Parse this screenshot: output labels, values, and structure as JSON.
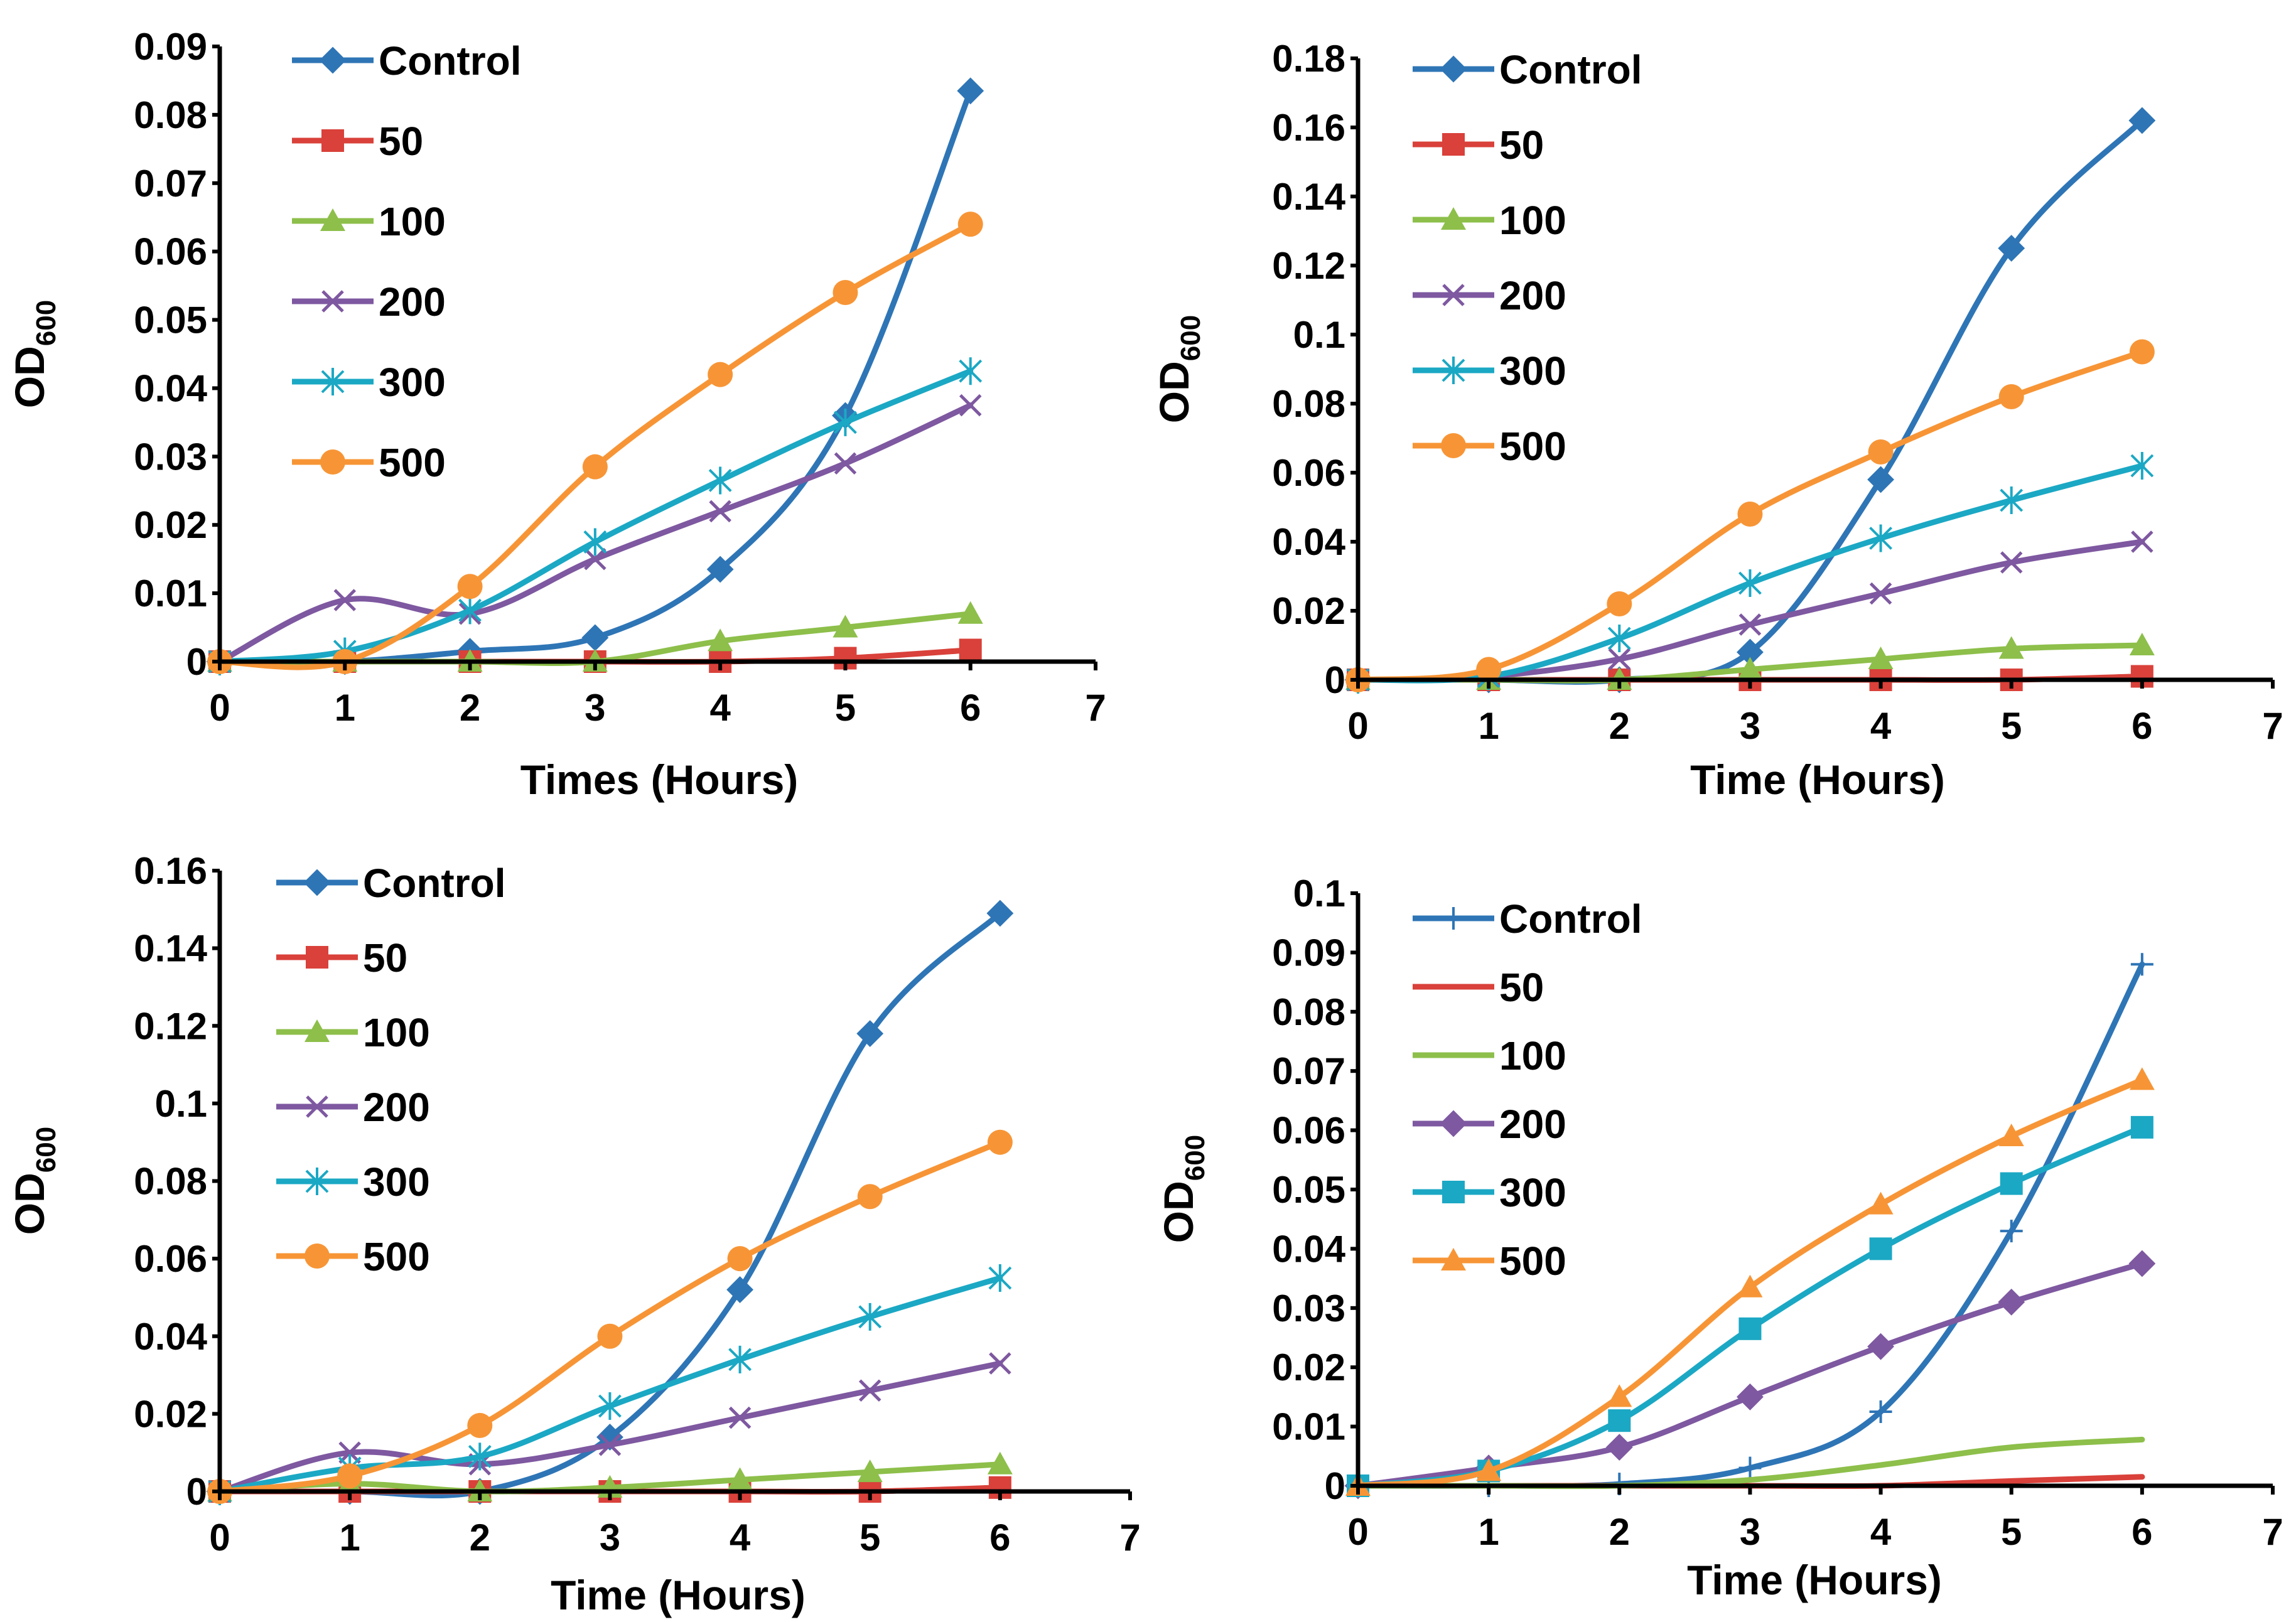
{
  "colors": {
    "control": "#2E75B6",
    "c50": "#D9413A",
    "c100": "#8DBF4A",
    "c200": "#7E58A0",
    "c300": "#1BA8C4",
    "c500": "#F79536"
  },
  "chart_data": [
    {
      "type": "line",
      "ylabel_main": "OD",
      "ylabel_sub": "600",
      "xlabel": "Times (Hours)",
      "xlim": [
        0,
        7
      ],
      "ylim": [
        0,
        0.09
      ],
      "x_ticks": [
        "0",
        "1",
        "2",
        "3",
        "4",
        "5",
        "6",
        "7"
      ],
      "y_ticks": [
        "0",
        "0.01",
        "0.02",
        "0.03",
        "0.04",
        "0.05",
        "0.06",
        "0.07",
        "0.08",
        "0.09"
      ],
      "x": [
        0,
        1,
        2,
        3,
        4,
        5,
        6
      ],
      "series": [
        {
          "name": "Control",
          "color": "control",
          "marker": "diamond",
          "values": [
            0,
            0,
            0.0015,
            0.0035,
            0.0135,
            0.036,
            0.0835
          ]
        },
        {
          "name": "50",
          "color": "c50",
          "marker": "square",
          "values": [
            0,
            0,
            0,
            0,
            0,
            0.0005,
            0.0017
          ]
        },
        {
          "name": "100",
          "color": "c100",
          "marker": "triangle",
          "values": [
            0,
            0,
            0,
            0,
            0.003,
            0.005,
            0.007
          ]
        },
        {
          "name": "200",
          "color": "c200",
          "marker": "x",
          "values": [
            0,
            0.009,
            0.007,
            0.015,
            0.022,
            0.029,
            0.0375
          ]
        },
        {
          "name": "300",
          "color": "c300",
          "marker": "star",
          "values": [
            0,
            0.0015,
            0.0075,
            0.0175,
            0.0265,
            0.035,
            0.0425
          ]
        },
        {
          "name": "500",
          "color": "c500",
          "marker": "circle",
          "values": [
            0,
            0,
            0.011,
            0.0285,
            0.042,
            0.054,
            0.064
          ]
        }
      ]
    },
    {
      "type": "line",
      "ylabel_main": "OD",
      "ylabel_sub": "600",
      "xlabel": "Time (Hours)",
      "xlim": [
        0,
        7
      ],
      "ylim": [
        0,
        0.18
      ],
      "x_ticks": [
        "0",
        "1",
        "2",
        "3",
        "4",
        "5",
        "6",
        "7"
      ],
      "y_ticks": [
        "0",
        "0.02",
        "0.04",
        "0.06",
        "0.08",
        "0.1",
        "0.12",
        "0.14",
        "0.16",
        "0.18"
      ],
      "x": [
        0,
        1,
        2,
        3,
        4,
        5,
        6
      ],
      "series": [
        {
          "name": "Control",
          "color": "control",
          "marker": "diamond",
          "values": [
            0,
            0,
            0,
            0.008,
            0.058,
            0.125,
            0.162
          ]
        },
        {
          "name": "50",
          "color": "c50",
          "marker": "square",
          "values": [
            0,
            0,
            0,
            0,
            0,
            0,
            0.001
          ]
        },
        {
          "name": "100",
          "color": "c100",
          "marker": "triangle",
          "values": [
            0,
            0,
            0,
            0.003,
            0.006,
            0.009,
            0.01
          ]
        },
        {
          "name": "200",
          "color": "c200",
          "marker": "x",
          "values": [
            0,
            0.001,
            0.006,
            0.016,
            0.025,
            0.034,
            0.04
          ]
        },
        {
          "name": "300",
          "color": "c300",
          "marker": "star",
          "values": [
            0,
            0.001,
            0.012,
            0.028,
            0.041,
            0.052,
            0.062
          ]
        },
        {
          "name": "500",
          "color": "c500",
          "marker": "circle",
          "values": [
            0,
            0.003,
            0.022,
            0.048,
            0.066,
            0.082,
            0.095
          ]
        }
      ]
    },
    {
      "type": "line",
      "ylabel_main": "OD",
      "ylabel_sub": "600",
      "xlabel": "Time (Hours)",
      "xlim": [
        0,
        7
      ],
      "ylim": [
        0,
        0.16
      ],
      "x_ticks": [
        "0",
        "1",
        "2",
        "3",
        "4",
        "5",
        "6",
        "7"
      ],
      "y_ticks": [
        "0",
        "0.02",
        "0.04",
        "0.06",
        "0.08",
        "0.1",
        "0.12",
        "0.14",
        "0.16"
      ],
      "x": [
        0,
        1,
        2,
        3,
        4,
        5,
        6
      ],
      "series": [
        {
          "name": "Control",
          "color": "control",
          "marker": "diamond",
          "values": [
            0,
            0,
            0,
            0.014,
            0.052,
            0.118,
            0.149
          ]
        },
        {
          "name": "50",
          "color": "c50",
          "marker": "square",
          "values": [
            0,
            0,
            0,
            0,
            0,
            0,
            0.001
          ]
        },
        {
          "name": "100",
          "color": "c100",
          "marker": "triangle",
          "values": [
            0,
            0.002,
            0,
            0.001,
            0.003,
            0.005,
            0.007
          ]
        },
        {
          "name": "200",
          "color": "c200",
          "marker": "x",
          "values": [
            0,
            0.01,
            0.007,
            0.012,
            0.019,
            0.026,
            0.033
          ]
        },
        {
          "name": "300",
          "color": "c300",
          "marker": "star",
          "values": [
            0,
            0.006,
            0.009,
            0.022,
            0.034,
            0.045,
            0.055
          ]
        },
        {
          "name": "500",
          "color": "c500",
          "marker": "circle",
          "values": [
            0,
            0.004,
            0.017,
            0.04,
            0.06,
            0.076,
            0.09
          ]
        }
      ]
    },
    {
      "type": "line",
      "ylabel_main": "OD",
      "ylabel_sub": "600",
      "xlabel": "Time (Hours)",
      "xlim": [
        0,
        7
      ],
      "ylim": [
        0,
        0.1
      ],
      "x_ticks": [
        "0",
        "1",
        "2",
        "3",
        "4",
        "5",
        "6",
        "7"
      ],
      "y_ticks": [
        "0",
        "0.01",
        "0.02",
        "0.03",
        "0.04",
        "0.05",
        "0.06",
        "0.07",
        "0.08",
        "0.09",
        "0.1"
      ],
      "x": [
        0,
        1,
        2,
        3,
        4,
        5,
        6
      ],
      "series": [
        {
          "name": "Control",
          "color": "control",
          "marker": "plus",
          "values": [
            0,
            0,
            0.0003,
            0.003,
            0.0125,
            0.043,
            0.088
          ]
        },
        {
          "name": "50",
          "color": "c50",
          "marker": "none",
          "values": [
            0,
            0,
            0,
            0,
            0,
            0.0008,
            0.0015
          ]
        },
        {
          "name": "100",
          "color": "c100",
          "marker": "none",
          "values": [
            0,
            0,
            0,
            0.001,
            0.0035,
            0.0065,
            0.0078
          ]
        },
        {
          "name": "200",
          "color": "c200",
          "marker": "diamond",
          "values": [
            0,
            0.003,
            0.0065,
            0.015,
            0.0235,
            0.031,
            0.0375
          ]
        },
        {
          "name": "300",
          "color": "c300",
          "marker": "square",
          "values": [
            0,
            0.0025,
            0.011,
            0.0265,
            0.04,
            0.051,
            0.0605
          ]
        },
        {
          "name": "500",
          "color": "c500",
          "marker": "triangle",
          "values": [
            0,
            0.0025,
            0.015,
            0.0335,
            0.0475,
            0.059,
            0.0685
          ]
        }
      ]
    }
  ]
}
